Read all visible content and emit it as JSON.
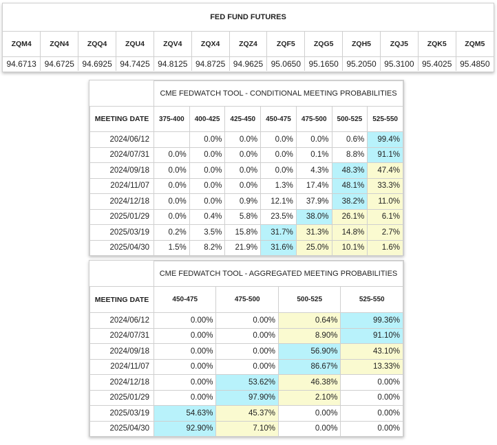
{
  "futures": {
    "title": "FED FUND FUTURES",
    "contracts": [
      {
        "code": "ZQM4",
        "price": "94.6713"
      },
      {
        "code": "ZQN4",
        "price": "94.6725"
      },
      {
        "code": "ZQQ4",
        "price": "94.6925"
      },
      {
        "code": "ZQU4",
        "price": "94.7425"
      },
      {
        "code": "ZQV4",
        "price": "94.8125"
      },
      {
        "code": "ZQX4",
        "price": "94.8725"
      },
      {
        "code": "ZQZ4",
        "price": "94.9625"
      },
      {
        "code": "ZQF5",
        "price": "95.0650"
      },
      {
        "code": "ZQG5",
        "price": "95.1650"
      },
      {
        "code": "ZQH5",
        "price": "95.2050"
      },
      {
        "code": "ZQJ5",
        "price": "95.3100"
      },
      {
        "code": "ZQK5",
        "price": "95.4025"
      },
      {
        "code": "ZQM5",
        "price": "95.4850"
      }
    ]
  },
  "colors": {
    "cyan": "#b8f2fb",
    "yellow": "#fafad0",
    "white": "#ffffff"
  },
  "conditional": {
    "title": "CME FEDWATCH TOOL - CONDITIONAL MEETING PROBABILITIES",
    "date_header": "MEETING DATE",
    "columns": [
      "375-400",
      "400-425",
      "425-450",
      "450-475",
      "475-500",
      "500-525",
      "525-550"
    ],
    "rows": [
      {
        "date": "2024/06/12",
        "cells": [
          "",
          "0.0%",
          "0.0%",
          "0.0%",
          "0.0%",
          "0.6%",
          "99.4%"
        ],
        "hl": [
          "w",
          "w",
          "w",
          "w",
          "w",
          "w",
          "c"
        ]
      },
      {
        "date": "2024/07/31",
        "cells": [
          "0.0%",
          "0.0%",
          "0.0%",
          "0.0%",
          "0.1%",
          "8.8%",
          "91.1%"
        ],
        "hl": [
          "w",
          "w",
          "w",
          "w",
          "w",
          "w",
          "c"
        ]
      },
      {
        "date": "2024/09/18",
        "cells": [
          "0.0%",
          "0.0%",
          "0.0%",
          "0.0%",
          "4.3%",
          "48.3%",
          "47.4%"
        ],
        "hl": [
          "w",
          "w",
          "w",
          "w",
          "w",
          "c",
          "y"
        ]
      },
      {
        "date": "2024/11/07",
        "cells": [
          "0.0%",
          "0.0%",
          "0.0%",
          "1.3%",
          "17.4%",
          "48.1%",
          "33.3%"
        ],
        "hl": [
          "w",
          "w",
          "w",
          "w",
          "w",
          "c",
          "y"
        ]
      },
      {
        "date": "2024/12/18",
        "cells": [
          "0.0%",
          "0.0%",
          "0.9%",
          "12.1%",
          "37.9%",
          "38.2%",
          "11.0%"
        ],
        "hl": [
          "w",
          "w",
          "w",
          "w",
          "w",
          "c",
          "y"
        ]
      },
      {
        "date": "2025/01/29",
        "cells": [
          "0.0%",
          "0.4%",
          "5.8%",
          "23.5%",
          "38.0%",
          "26.1%",
          "6.1%"
        ],
        "hl": [
          "w",
          "w",
          "w",
          "w",
          "c",
          "y",
          "y"
        ]
      },
      {
        "date": "2025/03/19",
        "cells": [
          "0.2%",
          "3.5%",
          "15.8%",
          "31.7%",
          "31.3%",
          "14.8%",
          "2.7%"
        ],
        "hl": [
          "w",
          "w",
          "w",
          "c",
          "y",
          "y",
          "y"
        ]
      },
      {
        "date": "2025/04/30",
        "cells": [
          "1.5%",
          "8.2%",
          "21.9%",
          "31.6%",
          "25.0%",
          "10.1%",
          "1.6%"
        ],
        "hl": [
          "w",
          "w",
          "w",
          "c",
          "y",
          "y",
          "y"
        ]
      }
    ]
  },
  "aggregated": {
    "title": "CME FEDWATCH TOOL - AGGREGATED MEETING PROBABILITIES",
    "date_header": "MEETING DATE",
    "columns": [
      "450-475",
      "475-500",
      "500-525",
      "525-550"
    ],
    "rows": [
      {
        "date": "2024/06/12",
        "cells": [
          "0.00%",
          "0.00%",
          "0.64%",
          "99.36%"
        ],
        "hl": [
          "w",
          "w",
          "y",
          "c"
        ]
      },
      {
        "date": "2024/07/31",
        "cells": [
          "0.00%",
          "0.00%",
          "8.90%",
          "91.10%"
        ],
        "hl": [
          "w",
          "w",
          "y",
          "c"
        ]
      },
      {
        "date": "2024/09/18",
        "cells": [
          "0.00%",
          "0.00%",
          "56.90%",
          "43.10%"
        ],
        "hl": [
          "w",
          "w",
          "c",
          "y"
        ]
      },
      {
        "date": "2024/11/07",
        "cells": [
          "0.00%",
          "0.00%",
          "86.67%",
          "13.33%"
        ],
        "hl": [
          "w",
          "w",
          "c",
          "y"
        ]
      },
      {
        "date": "2024/12/18",
        "cells": [
          "0.00%",
          "53.62%",
          "46.38%",
          "0.00%"
        ],
        "hl": [
          "w",
          "c",
          "y",
          "w"
        ]
      },
      {
        "date": "2025/01/29",
        "cells": [
          "0.00%",
          "97.90%",
          "2.10%",
          "0.00%"
        ],
        "hl": [
          "w",
          "c",
          "y",
          "w"
        ]
      },
      {
        "date": "2025/03/19",
        "cells": [
          "54.63%",
          "45.37%",
          "0.00%",
          "0.00%"
        ],
        "hl": [
          "c",
          "y",
          "w",
          "w"
        ]
      },
      {
        "date": "2025/04/30",
        "cells": [
          "92.90%",
          "7.10%",
          "0.00%",
          "0.00%"
        ],
        "hl": [
          "c",
          "y",
          "w",
          "w"
        ]
      }
    ]
  }
}
